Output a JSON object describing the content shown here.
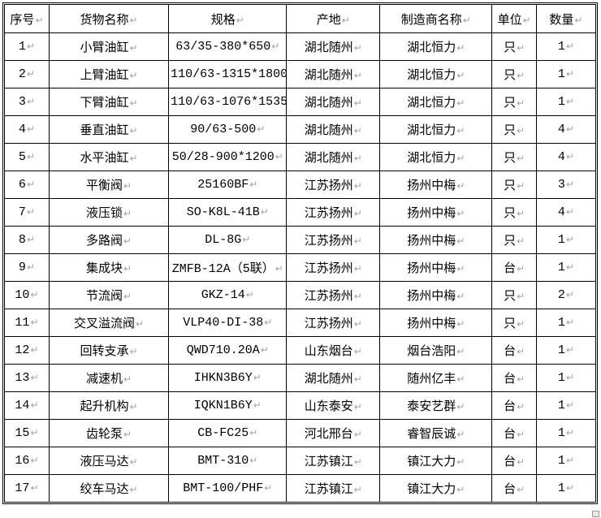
{
  "table": {
    "paragraph_mark": "↵",
    "headers": [
      "序号",
      "货物名称",
      "规格",
      "产地",
      "制造商名称",
      "单位",
      "数量"
    ],
    "rows": [
      [
        "1",
        "小臂油缸",
        "63/35-380*650",
        "湖北随州",
        "湖北恒力",
        "只",
        "1"
      ],
      [
        "2",
        "上臂油缸",
        "110/63-1315*1800",
        "湖北随州",
        "湖北恒力",
        "只",
        "1"
      ],
      [
        "3",
        "下臂油缸",
        "110/63-1076*1535",
        "湖北随州",
        "湖北恒力",
        "只",
        "1"
      ],
      [
        "4",
        "垂直油缸",
        "90/63-500",
        "湖北随州",
        "湖北恒力",
        "只",
        "4"
      ],
      [
        "5",
        "水平油缸",
        "50/28-900*1200",
        "湖北随州",
        "湖北恒力",
        "只",
        "4"
      ],
      [
        "6",
        "平衡阀",
        "25160BF",
        "江苏扬州",
        "扬州中梅",
        "只",
        "3"
      ],
      [
        "7",
        "液压锁",
        "SO-K8L-41B",
        "江苏扬州",
        "扬州中梅",
        "只",
        "4"
      ],
      [
        "8",
        "多路阀",
        "DL-8G",
        "江苏扬州",
        "扬州中梅",
        "只",
        "1"
      ],
      [
        "9",
        "集成块",
        "ZMFB-12A（5联）",
        "江苏扬州",
        "扬州中梅",
        "台",
        "1"
      ],
      [
        "10",
        "节流阀",
        "GKZ-14",
        "江苏扬州",
        "扬州中梅",
        "只",
        "2"
      ],
      [
        "11",
        "交叉溢流阀",
        "VLP40-DI-38",
        "江苏扬州",
        "扬州中梅",
        "只",
        "1"
      ],
      [
        "12",
        "回转支承",
        "QWD710.20A",
        "山东烟台",
        "烟台浩阳",
        "台",
        "1"
      ],
      [
        "13",
        "减速机",
        "IHKN3B6Y",
        "湖北随州",
        "随州亿丰",
        "台",
        "1"
      ],
      [
        "14",
        "起升机构",
        "IQKN1B6Y",
        "山东泰安",
        "泰安艺群",
        "台",
        "1"
      ],
      [
        "15",
        "齿轮泵",
        "CB-FC25",
        "河北邢台",
        "睿智辰诚",
        "台",
        "1"
      ],
      [
        "16",
        "液压马达",
        "BMT-310",
        "江苏镇江",
        "镇江大力",
        "台",
        "1"
      ],
      [
        "17",
        "绞车马达",
        "BMT-100/PHF",
        "江苏镇江",
        "镇江大力",
        "台",
        "1"
      ]
    ],
    "colors": {
      "border": "#000000",
      "text": "#000000",
      "mark": "#a3a3a3",
      "background": "#ffffff"
    }
  }
}
